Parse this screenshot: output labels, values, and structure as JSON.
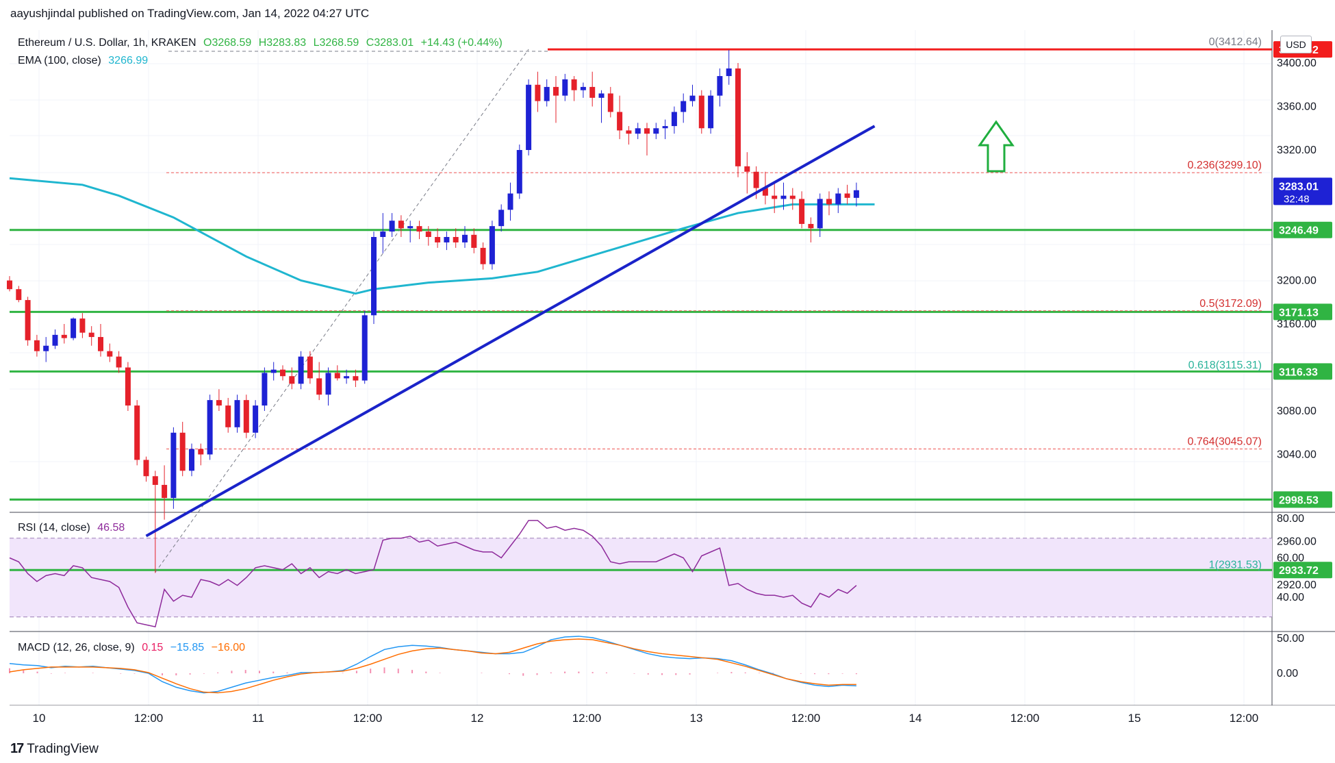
{
  "header": {
    "publisher_line": "aayushjindal published on TradingView.com, Jan 14, 2022 04:27 UTC"
  },
  "legend": {
    "symbol": "Ethereum / U.S. Dollar, 1h, KRAKEN",
    "open": "O3268.59",
    "high": "H3283.83",
    "low": "L3268.59",
    "close": "C3283.01",
    "change": "+14.43 (+0.44%)",
    "ema_label": "EMA (100, close)",
    "ema_value": "3266.99",
    "rsi_label": "RSI (14, close)",
    "rsi_value": "46.58",
    "macd_label": "MACD (12, 26, close, 9)",
    "macd_v1": "0.15",
    "macd_v2": "−15.85",
    "macd_v3": "−16.00"
  },
  "currency": "USD",
  "brand": "TradingView",
  "colors": {
    "up": "#1e22d4",
    "down": "#e5212a",
    "ema": "#1fb6cf",
    "support": "#30b443",
    "resistance": "#f21d1d",
    "trendline": "#1a23c9",
    "fib": "#ef5350",
    "rsi": "#8e2a9b",
    "macd": "#2196f3",
    "signal": "#ff6d00",
    "hist": "#e91e63",
    "arrow": "#1fae3e"
  },
  "chart_data": {
    "type": "candlestick",
    "x_ticks": [
      "10",
      "12:00",
      "11",
      "12:00",
      "12",
      "12:00",
      "13",
      "12:00",
      "14",
      "12:00",
      "15",
      "12:00"
    ],
    "y_ticks": [
      "3400.00",
      "3360.00",
      "3320.00",
      "3280.00",
      "3200.00",
      "3160.00",
      "3080.00",
      "3040.00",
      "2960.00",
      "2920.00"
    ],
    "candles": [
      [
        3200,
        3204,
        3190,
        3192
      ],
      [
        3192,
        3195,
        3180,
        3182
      ],
      [
        3182,
        3185,
        3140,
        3145
      ],
      [
        3145,
        3150,
        3130,
        3135
      ],
      [
        3135,
        3148,
        3125,
        3140
      ],
      [
        3140,
        3155,
        3137,
        3150
      ],
      [
        3150,
        3160,
        3142,
        3147
      ],
      [
        3147,
        3166,
        3145,
        3165
      ],
      [
        3165,
        3170,
        3147,
        3152
      ],
      [
        3152,
        3158,
        3140,
        3148
      ],
      [
        3148,
        3160,
        3130,
        3135
      ],
      [
        3135,
        3142,
        3125,
        3130
      ],
      [
        3130,
        3135,
        3115,
        3120
      ],
      [
        3120,
        3125,
        3080,
        3085
      ],
      [
        3085,
        3090,
        3030,
        3035
      ],
      [
        3035,
        3038,
        3015,
        3020
      ],
      [
        3020,
        3025,
        2931,
        3012
      ],
      [
        3012,
        3030,
        2980,
        3000
      ],
      [
        3000,
        3065,
        2990,
        3060
      ],
      [
        3060,
        3070,
        3020,
        3025
      ],
      [
        3025,
        3050,
        3020,
        3045
      ],
      [
        3045,
        3050,
        3030,
        3040
      ],
      [
        3040,
        3095,
        3035,
        3090
      ],
      [
        3090,
        3100,
        3080,
        3085
      ],
      [
        3085,
        3092,
        3060,
        3065
      ],
      [
        3065,
        3095,
        3060,
        3090
      ],
      [
        3090,
        3095,
        3055,
        3060
      ],
      [
        3060,
        3090,
        3055,
        3085
      ],
      [
        3085,
        3120,
        3080,
        3115
      ],
      [
        3115,
        3125,
        3108,
        3118
      ],
      [
        3118,
        3122,
        3108,
        3112
      ],
      [
        3112,
        3120,
        3100,
        3105
      ],
      [
        3105,
        3135,
        3100,
        3130
      ],
      [
        3130,
        3135,
        3105,
        3110
      ],
      [
        3110,
        3125,
        3090,
        3095
      ],
      [
        3095,
        3120,
        3085,
        3115
      ],
      [
        3115,
        3122,
        3108,
        3110
      ],
      [
        3110,
        3118,
        3105,
        3112
      ],
      [
        3112,
        3118,
        3102,
        3108
      ],
      [
        3108,
        3172,
        3105,
        3168
      ],
      [
        3168,
        3245,
        3160,
        3240
      ],
      [
        3240,
        3262,
        3225,
        3245
      ],
      [
        3245,
        3262,
        3240,
        3255
      ],
      [
        3255,
        3260,
        3240,
        3248
      ],
      [
        3248,
        3255,
        3235,
        3250
      ],
      [
        3250,
        3255,
        3238,
        3245
      ],
      [
        3245,
        3250,
        3232,
        3240
      ],
      [
        3240,
        3248,
        3230,
        3235
      ],
      [
        3235,
        3245,
        3228,
        3240
      ],
      [
        3240,
        3248,
        3230,
        3235
      ],
      [
        3235,
        3250,
        3230,
        3242
      ],
      [
        3242,
        3248,
        3225,
        3230
      ],
      [
        3230,
        3235,
        3210,
        3215
      ],
      [
        3215,
        3255,
        3210,
        3250
      ],
      [
        3250,
        3270,
        3245,
        3265
      ],
      [
        3265,
        3290,
        3255,
        3280
      ],
      [
        3280,
        3325,
        3275,
        3320
      ],
      [
        3320,
        3385,
        3315,
        3380
      ],
      [
        3380,
        3392,
        3355,
        3365
      ],
      [
        3365,
        3385,
        3360,
        3378
      ],
      [
        3378,
        3388,
        3345,
        3370
      ],
      [
        3370,
        3390,
        3365,
        3385
      ],
      [
        3385,
        3388,
        3365,
        3375
      ],
      [
        3375,
        3382,
        3368,
        3378
      ],
      [
        3378,
        3392,
        3360,
        3368
      ],
      [
        3368,
        3375,
        3345,
        3372
      ],
      [
        3372,
        3378,
        3350,
        3355
      ],
      [
        3355,
        3370,
        3330,
        3338
      ],
      [
        3338,
        3342,
        3325,
        3335
      ],
      [
        3335,
        3345,
        3330,
        3340
      ],
      [
        3340,
        3345,
        3315,
        3335
      ],
      [
        3335,
        3345,
        3330,
        3340
      ],
      [
        3340,
        3348,
        3330,
        3342
      ],
      [
        3342,
        3360,
        3335,
        3355
      ],
      [
        3355,
        3372,
        3345,
        3365
      ],
      [
        3365,
        3380,
        3360,
        3370
      ],
      [
        3370,
        3375,
        3335,
        3340
      ],
      [
        3340,
        3375,
        3335,
        3370
      ],
      [
        3370,
        3395,
        3360,
        3388
      ],
      [
        3388,
        3412,
        3380,
        3395
      ],
      [
        3395,
        3400,
        3295,
        3305
      ],
      [
        3305,
        3318,
        3280,
        3300
      ],
      [
        3300,
        3305,
        3275,
        3285
      ],
      [
        3285,
        3300,
        3270,
        3278
      ],
      [
        3278,
        3290,
        3262,
        3275
      ],
      [
        3275,
        3290,
        3265,
        3278
      ],
      [
        3278,
        3285,
        3265,
        3275
      ],
      [
        3275,
        3282,
        3248,
        3252
      ],
      [
        3252,
        3258,
        3235,
        3248
      ],
      [
        3248,
        3280,
        3240,
        3275
      ],
      [
        3275,
        3282,
        3260,
        3270
      ],
      [
        3270,
        3285,
        3262,
        3280
      ],
      [
        3280,
        3288,
        3270,
        3276
      ],
      [
        3276,
        3290,
        3268,
        3283
      ]
    ],
    "ema": [
      [
        0,
        3294
      ],
      [
        8,
        3288
      ],
      [
        12,
        3278
      ],
      [
        18,
        3258
      ],
      [
        26,
        3222
      ],
      [
        32,
        3200
      ],
      [
        38,
        3188
      ],
      [
        40,
        3192
      ],
      [
        46,
        3198
      ],
      [
        53,
        3202
      ],
      [
        58,
        3208
      ],
      [
        66,
        3228
      ],
      [
        74,
        3248
      ],
      [
        80,
        3262
      ],
      [
        86,
        3270
      ],
      [
        95,
        3270
      ]
    ],
    "resistance": {
      "label": "3412.52",
      "value": 3412.52
    },
    "supports": [
      {
        "label": "3246.49",
        "value": 3246.49
      },
      {
        "label": "3171.13",
        "value": 3171.13
      },
      {
        "label": "3116.33",
        "value": 3116.33
      },
      {
        "label": "2998.53",
        "value": 2998.53
      },
      {
        "label": "2933.72",
        "value": 2933.72
      }
    ],
    "fib_levels": [
      {
        "label": "0(3412.64)",
        "value": 3412.64,
        "style": "none"
      },
      {
        "label": "0.236(3299.10)",
        "value": 3299.1,
        "style": "dashed"
      },
      {
        "label": "0.5(3172.09)",
        "value": 3172.09,
        "style": "dashed"
      },
      {
        "label": "0.618(3115.31)",
        "value": 3115.31,
        "style": "none"
      },
      {
        "label": "0.764(3045.07)",
        "value": 3045.07,
        "style": "dashed"
      },
      {
        "label": "1(2931.53)",
        "value": 2931.53,
        "style": "none"
      }
    ],
    "trendline": {
      "from": [
        15,
        2965
      ],
      "to": [
        95,
        3342
      ]
    },
    "last_price": {
      "label": "3283.01",
      "countdown": "32:48"
    },
    "rsi": {
      "y_ticks": [
        "80.00",
        "60.00",
        "40.00"
      ],
      "band": [
        30,
        70
      ],
      "values": [
        60,
        58,
        52,
        48,
        51,
        52,
        51,
        56,
        55,
        50,
        49,
        48,
        45,
        35,
        27,
        26,
        25,
        44,
        38,
        41,
        40,
        49,
        48,
        46,
        49,
        46,
        50,
        55,
        56,
        55,
        54,
        57,
        52,
        55,
        50,
        53,
        52,
        54,
        52,
        53,
        54,
        69,
        70,
        70,
        71,
        68,
        69,
        66,
        67,
        68,
        66,
        64,
        63,
        63,
        60,
        66,
        72,
        79,
        79,
        75,
        76,
        74,
        75,
        74,
        71,
        66,
        58,
        57,
        58,
        58,
        58,
        58,
        60,
        62,
        60,
        53,
        61,
        63,
        65,
        46,
        47,
        44,
        42,
        41,
        41,
        40,
        41,
        37,
        35,
        42,
        40,
        44,
        42,
        46
      ]
    },
    "macd": {
      "y_ticks": [
        "50.00",
        "0.00"
      ],
      "macd": [
        14,
        12,
        11,
        8,
        10,
        9,
        10,
        8,
        6,
        4,
        0,
        -12,
        -20,
        -25,
        -28,
        -26,
        -20,
        -14,
        -10,
        -6,
        -3,
        1,
        1,
        2,
        4,
        13,
        24,
        34,
        38,
        40,
        39,
        37,
        34,
        32,
        30,
        28,
        28,
        30,
        38,
        48,
        52,
        53,
        51,
        46,
        40,
        34,
        28,
        24,
        22,
        21,
        22,
        21,
        18,
        12,
        5,
        -1,
        -8,
        -13,
        -17,
        -19,
        -17,
        -18
      ],
      "signal": [
        2,
        5,
        7,
        9,
        9,
        9,
        9,
        8,
        7,
        5,
        1,
        -7,
        -15,
        -22,
        -27,
        -28,
        -26,
        -22,
        -16,
        -10,
        -5,
        -1,
        1,
        2,
        3,
        7,
        13,
        20,
        27,
        32,
        35,
        36,
        34,
        32,
        29,
        28,
        30,
        36,
        42,
        46,
        48,
        49,
        48,
        44,
        40,
        35,
        31,
        28,
        26,
        24,
        22,
        20,
        15,
        10,
        4,
        -2,
        -8,
        -12,
        -15,
        -17,
        -16,
        -16
      ]
    }
  }
}
